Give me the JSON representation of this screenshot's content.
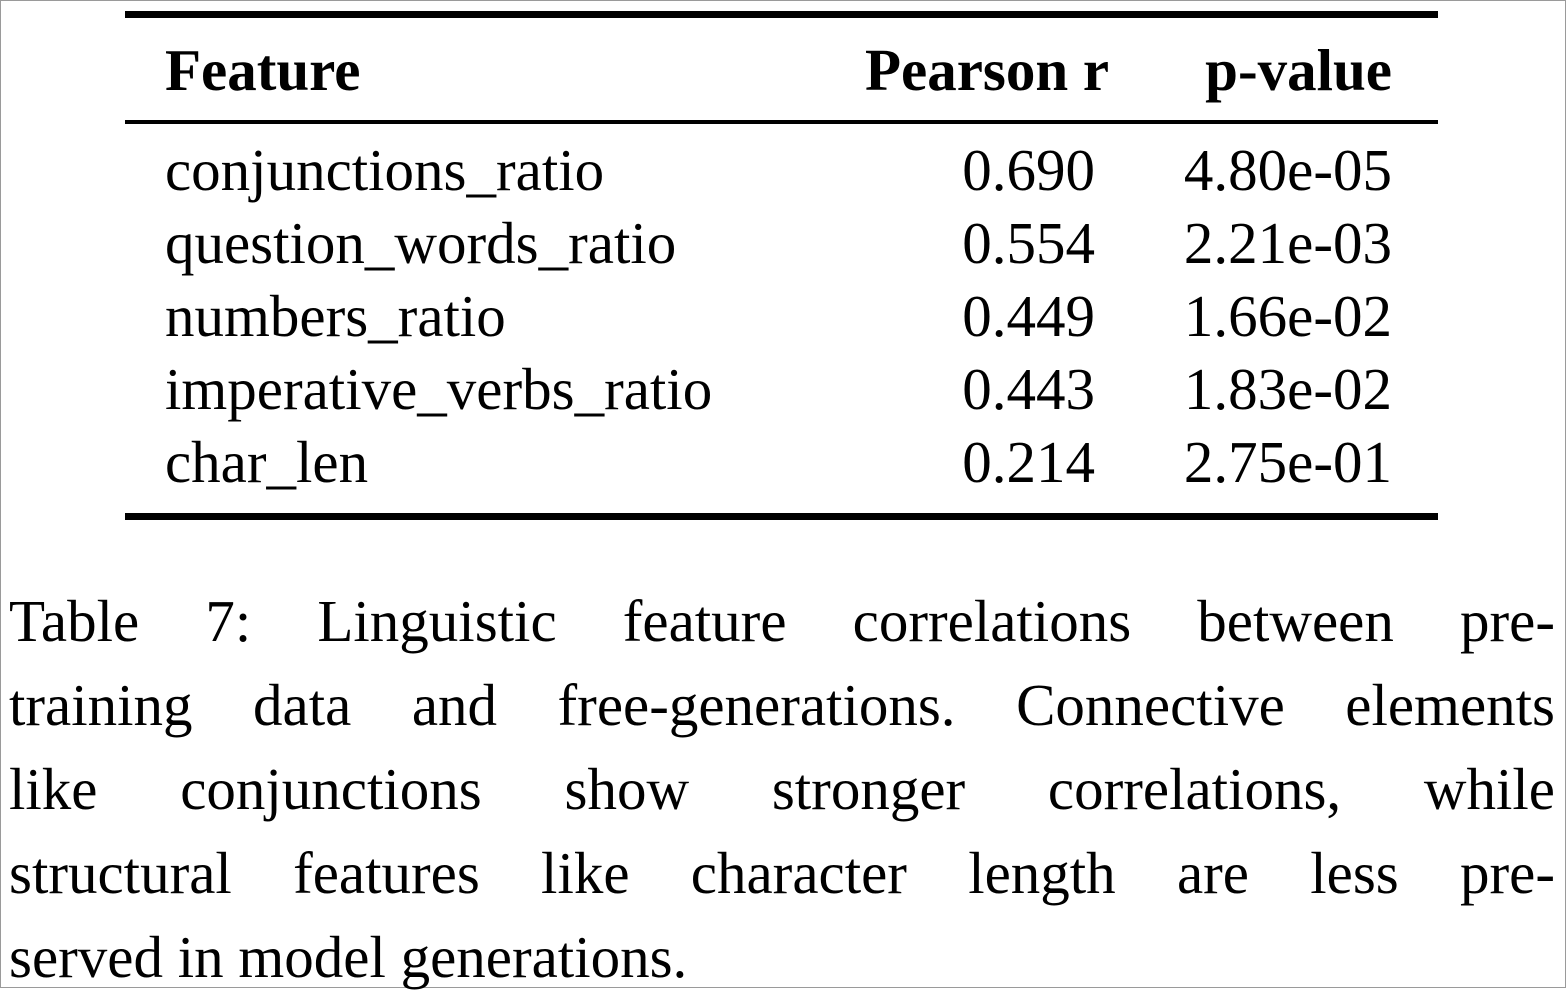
{
  "table": {
    "columns": [
      "Feature",
      "Pearson r",
      "p-value"
    ],
    "rows": [
      {
        "feature": "conjunctions_ratio",
        "pearson_r": "0.690",
        "p_value": "4.80e-05"
      },
      {
        "feature": "question_words_ratio",
        "pearson_r": "0.554",
        "p_value": "2.21e-03"
      },
      {
        "feature": "numbers_ratio",
        "pearson_r": "0.449",
        "p_value": "1.66e-02"
      },
      {
        "feature": "imperative_verbs_ratio",
        "pearson_r": "0.443",
        "p_value": "1.83e-02"
      },
      {
        "feature": "char_len",
        "pearson_r": "0.214",
        "p_value": "2.75e-01"
      }
    ]
  },
  "caption": {
    "label": "Table 7",
    "lines": [
      "Table 7: Linguistic feature correlations between pre-",
      "training data and free-generations. Connective elements",
      "like conjunctions show stronger correlations, while",
      "structural features like character length are less pre-",
      "served in model generations."
    ],
    "full_text": "Table 7: Linguistic feature correlations between pre-training data and free-generations. Connective elements like conjunctions show stronger correlations, while structural features like character length are less preserved in model generations."
  },
  "colors": {
    "text": "#000000",
    "background": "#ffffff",
    "rule": "#000000",
    "page_border": "#9a9a9a"
  }
}
